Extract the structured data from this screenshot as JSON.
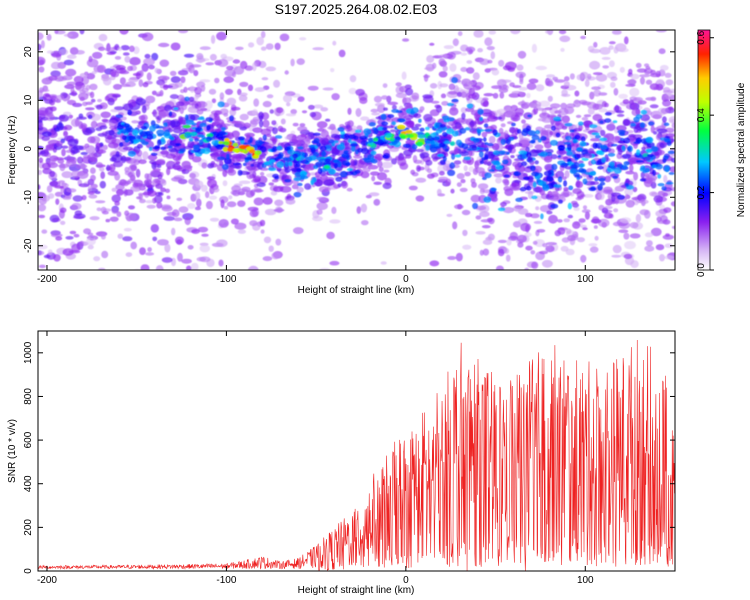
{
  "title": "S197.2025.264.08.02.E03",
  "chart_data": [
    {
      "type": "heatmap",
      "title": "S197.2025.264.08.02.E03",
      "xlabel": "Height of straight line (km)",
      "ylabel": "Frequency (Hz)",
      "xlim": [
        -205,
        150
      ],
      "ylim": [
        -25,
        24.5
      ],
      "x_ticks": [
        -200,
        -100,
        0,
        100
      ],
      "y_ticks": [
        -20,
        -10,
        0,
        10,
        20
      ],
      "colorbar": {
        "label": "Normalized spectral amplitude",
        "range": [
          0.0,
          0.62
        ],
        "ticks": [
          "0.0",
          "0.2",
          "0.4",
          "0.6"
        ],
        "colormap": [
          "#ffffff",
          "#a020f0",
          "#0000ff",
          "#00e0ff",
          "#00ff00",
          "#ffff00",
          "#ff0000",
          "#ff1493"
        ]
      },
      "ridge": {
        "description_points_x": [
          -150,
          -120,
          -100,
          -85,
          -60,
          -40,
          -20,
          0,
          20,
          50,
          80,
          100,
          130,
          150
        ],
        "description_points_y": [
          3,
          3,
          1,
          -1,
          -3,
          -2,
          1,
          3,
          2,
          0,
          -3,
          -2,
          0,
          -2
        ]
      }
    },
    {
      "type": "line",
      "xlabel": "Height of straight line (km)",
      "ylabel": "SNR (10 * v/v)",
      "xlim": [
        -205,
        150
      ],
      "ylim": [
        0,
        1100
      ],
      "x_ticks": [
        -200,
        -100,
        0,
        100
      ],
      "y_ticks": [
        0,
        200,
        400,
        600,
        800,
        1000
      ],
      "line_color": "#ee2222",
      "envelope": {
        "x": [
          -205,
          -150,
          -100,
          -90,
          -80,
          -70,
          -60,
          -50,
          -40,
          -30,
          -20,
          -10,
          0,
          20,
          30,
          50,
          80,
          90,
          100,
          120,
          130,
          150
        ],
        "y": [
          25,
          28,
          35,
          50,
          70,
          45,
          60,
          120,
          200,
          280,
          420,
          560,
          650,
          850,
          1060,
          900,
          1050,
          1020,
          960,
          1000,
          1090,
          900
        ]
      }
    }
  ]
}
